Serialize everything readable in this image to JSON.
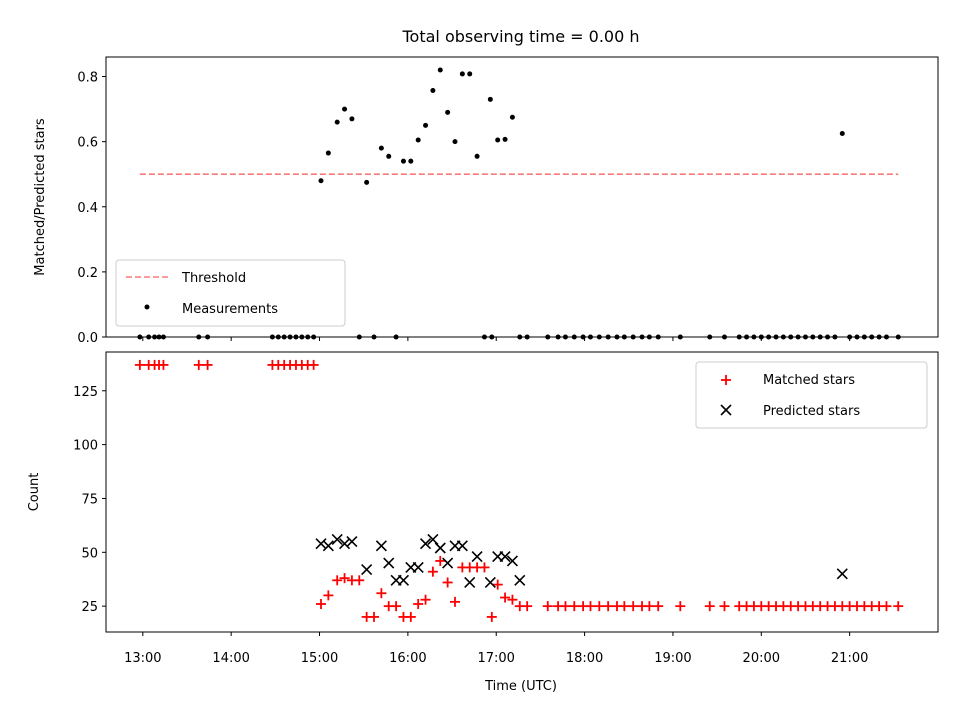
{
  "figure_title": "Total observing time = 0.00 h",
  "chart_data": [
    {
      "type": "scatter",
      "panel": "top",
      "ylabel": "Matched/Predicted stars",
      "xlabel": "",
      "xlim": [
        "12:35",
        "22:00"
      ],
      "ylim": [
        0,
        0.86
      ],
      "yticks": [
        0.0,
        0.2,
        0.4,
        0.6,
        0.8
      ],
      "ytick_labels": [
        "0.0",
        "0.2",
        "0.4",
        "0.6",
        "0.8"
      ],
      "legend_position": "lower-left",
      "threshold": {
        "name": "Threshold",
        "value": 0.5,
        "x_range": [
          "12:58",
          "21:33"
        ],
        "color": "#f87b7b"
      },
      "series": [
        {
          "name": "Measurements",
          "color": "#000000",
          "x": [
            "15:01",
            "15:06",
            "15:12",
            "15:17",
            "15:22",
            "15:32",
            "15:42",
            "15:47",
            "15:57",
            "16:02",
            "16:07",
            "16:12",
            "16:17",
            "16:22",
            "16:27",
            "16:32",
            "16:37",
            "16:42",
            "16:47",
            "16:56",
            "17:01",
            "17:06",
            "17:11",
            "17:16",
            "20:55",
            "12:58",
            "13:04",
            "13:08",
            "13:11",
            "13:14",
            "13:38",
            "13:44",
            "14:28",
            "14:32",
            "14:36",
            "14:40",
            "14:44",
            "14:48",
            "14:52",
            "14:56",
            "15:27",
            "15:37",
            "15:52",
            "16:52",
            "16:57",
            "17:21",
            "17:35",
            "17:42",
            "17:47",
            "17:53",
            "17:59",
            "18:04",
            "18:10",
            "18:16",
            "18:22",
            "18:27",
            "18:33",
            "18:39",
            "18:44",
            "18:50",
            "19:05",
            "19:25",
            "19:35",
            "19:45",
            "19:50",
            "19:55",
            "20:00",
            "20:05",
            "20:10",
            "20:15",
            "20:20",
            "20:25",
            "20:30",
            "20:35",
            "20:40",
            "20:45",
            "20:50",
            "21:00",
            "21:05",
            "21:10",
            "21:15",
            "21:20",
            "21:25",
            "21:33"
          ],
          "y": [
            0.48,
            0.565,
            0.66,
            0.7,
            0.67,
            0.475,
            0.58,
            0.555,
            0.54,
            0.54,
            0.605,
            0.65,
            0.757,
            0.82,
            0.69,
            0.6,
            0.808,
            0.808,
            0.555,
            0.73,
            0.605,
            0.607,
            0.675,
            0.0,
            0.625,
            0,
            0,
            0,
            0,
            0,
            0,
            0,
            0,
            0,
            0,
            0,
            0,
            0,
            0,
            0,
            0,
            0,
            0,
            0,
            0,
            0,
            0,
            0,
            0,
            0,
            0,
            0,
            0,
            0,
            0,
            0,
            0,
            0,
            0,
            0,
            0,
            0,
            0,
            0,
            0,
            0,
            0,
            0,
            0,
            0,
            0,
            0,
            0,
            0,
            0,
            0,
            0,
            0,
            0,
            0,
            0,
            0,
            0,
            0
          ]
        }
      ]
    },
    {
      "type": "scatter",
      "panel": "bottom",
      "ylabel": "Count",
      "xlabel": "Time (UTC)",
      "xlim": [
        "12:35",
        "22:00"
      ],
      "ylim": [
        13,
        143
      ],
      "yticks": [
        25,
        50,
        75,
        100,
        125
      ],
      "ytick_labels": [
        "25",
        "50",
        "75",
        "100",
        "125"
      ],
      "xtick_labels": [
        "13:00",
        "14:00",
        "15:00",
        "16:00",
        "17:00",
        "18:00",
        "19:00",
        "20:00",
        "21:00"
      ],
      "legend_position": "upper-right",
      "series": [
        {
          "name": "Matched stars",
          "marker": "plus",
          "color": "#ff0000",
          "x": [
            "12:58",
            "13:04",
            "13:08",
            "13:11",
            "13:14",
            "13:38",
            "13:44",
            "14:28",
            "14:32",
            "14:36",
            "14:40",
            "14:44",
            "14:48",
            "14:52",
            "14:56",
            "15:01",
            "15:06",
            "15:12",
            "15:17",
            "15:22",
            "15:27",
            "15:32",
            "15:37",
            "15:42",
            "15:47",
            "15:52",
            "15:57",
            "16:02",
            "16:07",
            "16:12",
            "16:17",
            "16:22",
            "16:27",
            "16:32",
            "16:37",
            "16:42",
            "16:47",
            "16:52",
            "16:57",
            "17:01",
            "17:06",
            "17:11",
            "17:16",
            "17:21",
            "17:35",
            "17:42",
            "17:47",
            "17:53",
            "17:59",
            "18:04",
            "18:10",
            "18:16",
            "18:22",
            "18:27",
            "18:33",
            "18:39",
            "18:44",
            "18:50",
            "19:05",
            "19:25",
            "19:35",
            "19:45",
            "19:50",
            "19:55",
            "20:00",
            "20:05",
            "20:10",
            "20:15",
            "20:20",
            "20:25",
            "20:30",
            "20:35",
            "20:40",
            "20:45",
            "20:50",
            "20:55",
            "21:00",
            "21:05",
            "21:10",
            "21:15",
            "21:20",
            "21:25",
            "21:33"
          ],
          "y": [
            137,
            137,
            137,
            137,
            137,
            137,
            137,
            137,
            137,
            137,
            137,
            137,
            137,
            137,
            137,
            26,
            30,
            37,
            38,
            37,
            37,
            20,
            20,
            31,
            25,
            25,
            20,
            20,
            26,
            28,
            41,
            46,
            36,
            27,
            43,
            43,
            43,
            43,
            20,
            35,
            29,
            28,
            25,
            25,
            25,
            25,
            25,
            25,
            25,
            25,
            25,
            25,
            25,
            25,
            25,
            25,
            25,
            25,
            25,
            25,
            25,
            25,
            25,
            25,
            25,
            25,
            25,
            25,
            25,
            25,
            25,
            25,
            25,
            25,
            25,
            25,
            25,
            25,
            25,
            25,
            25,
            25,
            25
          ]
        },
        {
          "name": "Predicted stars",
          "marker": "x",
          "color": "#000000",
          "x": [
            "15:01",
            "15:06",
            "15:12",
            "15:17",
            "15:22",
            "15:32",
            "15:42",
            "15:47",
            "15:52",
            "15:57",
            "16:02",
            "16:07",
            "16:12",
            "16:17",
            "16:22",
            "16:27",
            "16:32",
            "16:37",
            "16:42",
            "16:47",
            "16:56",
            "17:01",
            "17:06",
            "17:11",
            "17:16",
            "20:55"
          ],
          "y": [
            54,
            53,
            56,
            54,
            55,
            42,
            53,
            45,
            37,
            37,
            43,
            43,
            54,
            56,
            52,
            45,
            53,
            53,
            36,
            48,
            36,
            48,
            48,
            46,
            37,
            40
          ]
        }
      ]
    }
  ]
}
